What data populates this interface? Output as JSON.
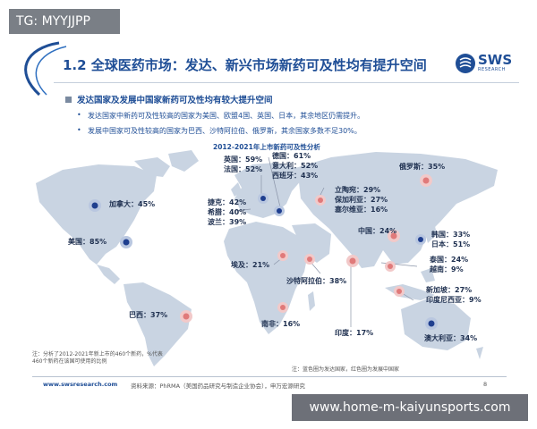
{
  "tag": "TG: MYYJJPP",
  "slide": {
    "title": "1.2 全球医药市场：发达、新兴市场新药可及性均有提升空间",
    "logo_text": "SWS",
    "logo_sub": "RESEARCH",
    "heading": "发达国家及发展中国家新药可及性均有较大提升空间",
    "bullets": [
      "发达国家中新药可及性较高的国家为美国、欧盟4国、英国、日本，其余地区仍需提升。",
      "发展中国家可及性较高的国家为巴西、沙特阿拉伯、俄罗斯，其余国家多数不足30%。"
    ],
    "map_title": "2012-2021年上市新药可及性分析",
    "labels": {
      "canada": "加拿大：45%",
      "usa": "美国：85%",
      "brazil": "巴西：37%",
      "uk": "英国：59%",
      "france": "法国：52%",
      "germany": "德国：61%",
      "italy": "意大利：52%",
      "spain": "西班牙：43%",
      "czech": "捷克：42%",
      "greece": "希腊：40%",
      "poland": "波兰：39%",
      "lithuania": "立陶宛：29%",
      "bulgaria": "保加利亚：27%",
      "serbia": "塞尔维亚：16%",
      "russia": "俄罗斯：35%",
      "china": "中国：24%",
      "korea": "韩国：33%",
      "japan": "日本：51%",
      "thailand": "泰国：24%",
      "vietnam": "越南：9%",
      "egypt": "埃及：21%",
      "saudi": "沙特阿拉伯：38%",
      "singapore": "新加坡：27%",
      "indonesia": "印度尼西亚：9%",
      "south_africa": "南非：16%",
      "india": "印度：17%",
      "australia": "澳大利亚：34%"
    },
    "note_left": "注：分析了2012-2021年新上市的460个新药，%代表460个新药在该国可使用的比例",
    "note_right": "注：蓝色圈为发达国家，红色圈为发展中国家",
    "footer_url": "www.swsresearch.com",
    "footer_source": "资料来源：PhRMA（美国药品研究与制造企业协会），申万宏源研究",
    "page_number": "8"
  },
  "watermark": "www.home-m-kaiyunsports.com",
  "colors": {
    "brand": "#1f4e96",
    "developed": "#1f3f8f",
    "developing": "#e07a7a",
    "map": "#c9d4e2"
  }
}
